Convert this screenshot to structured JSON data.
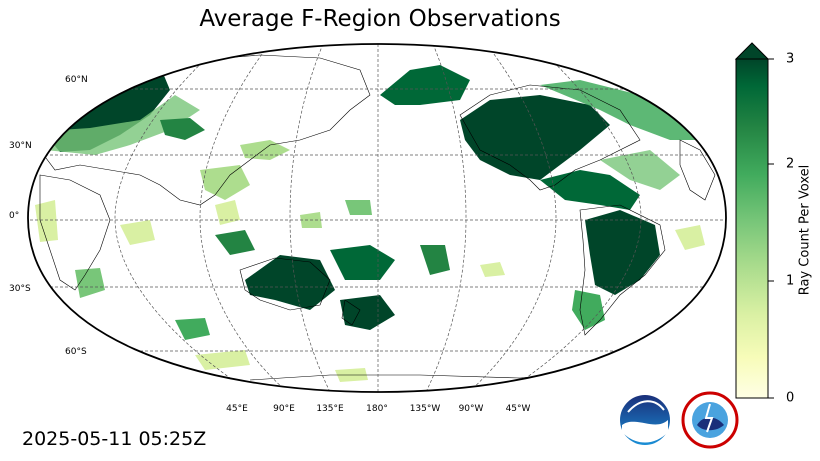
{
  "title": "Average F-Region Observations",
  "timestamp": "2025-05-11 05:25Z",
  "map": {
    "projection": "robinson",
    "central_longitude": 180,
    "graticule": "dashed",
    "lat_labels": [
      "60°N",
      "30°N",
      "0°",
      "30°S",
      "60°S"
    ],
    "lon_labels": [
      "45°E",
      "90°E",
      "135°E",
      "180°",
      "135°W",
      "90°W",
      "45°W"
    ]
  },
  "colorbar": {
    "label": "Ray Count Per Voxel",
    "ticks": [
      "0",
      "1",
      "2",
      "3"
    ],
    "range": [
      0,
      3
    ],
    "extend": "max",
    "colors": [
      "#ffffe5",
      "#f7fcb9",
      "#d9f0a3",
      "#addd8e",
      "#78c679",
      "#41ab5d",
      "#238443",
      "#006837",
      "#004529"
    ]
  },
  "logos": [
    "noaa-logo",
    "national-weather-service-logo"
  ]
}
